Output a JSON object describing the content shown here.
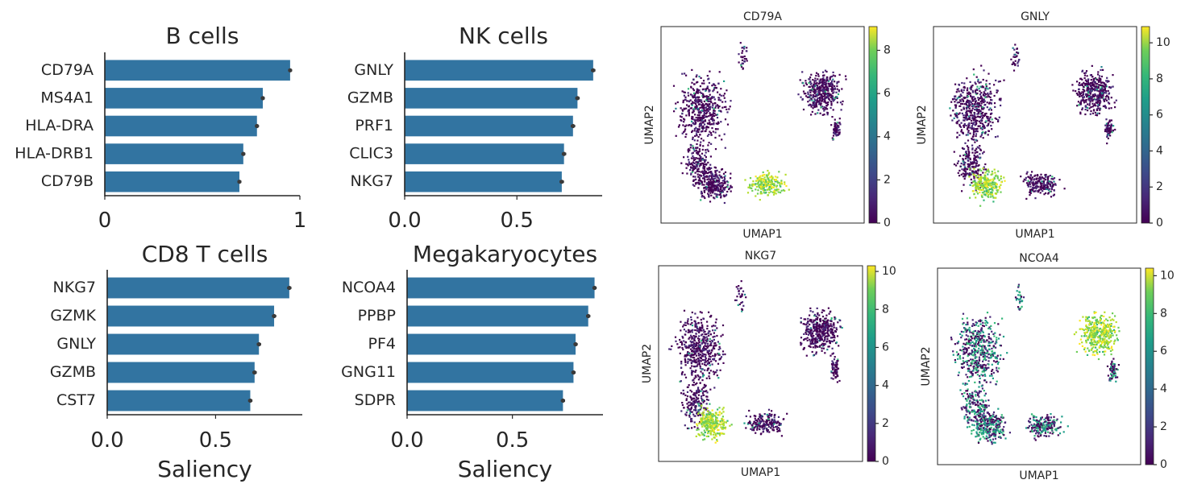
{
  "chart_data": [
    {
      "type": "bar",
      "orientation": "horizontal",
      "title": "B cells",
      "categories": [
        "CD79A",
        "MS4A1",
        "HLA-DRA",
        "HLA-DRB1",
        "CD79B"
      ],
      "values": [
        0.95,
        0.81,
        0.78,
        0.71,
        0.69
      ],
      "errors": [
        0.01,
        0.01,
        0.01,
        0.01,
        0.01
      ],
      "xlim": [
        0,
        1.0
      ],
      "xticks": [
        0,
        1
      ],
      "xtick_labels": [
        "0",
        "1"
      ],
      "xlabel": ""
    },
    {
      "type": "bar",
      "orientation": "horizontal",
      "title": "NK cells",
      "categories": [
        "GNLY",
        "GZMB",
        "PRF1",
        "CLIC3",
        "NKG7"
      ],
      "values": [
        0.84,
        0.77,
        0.75,
        0.71,
        0.7
      ],
      "errors": [
        0.01,
        0.01,
        0.01,
        0.01,
        0.01
      ],
      "xlim": [
        0,
        0.88
      ],
      "xticks": [
        0,
        0.5
      ],
      "xtick_labels": [
        "0.0",
        "0.5"
      ],
      "xlabel": ""
    },
    {
      "type": "bar",
      "orientation": "horizontal",
      "title": "CD8 T cells",
      "categories": [
        "NKG7",
        "GZMK",
        "GNLY",
        "GZMB",
        "CST7"
      ],
      "values": [
        0.84,
        0.77,
        0.7,
        0.68,
        0.66
      ],
      "errors": [
        0.01,
        0.01,
        0.01,
        0.01,
        0.01
      ],
      "xlim": [
        0,
        0.9
      ],
      "xticks": [
        0,
        0.5
      ],
      "xtick_labels": [
        "0.0",
        "0.5"
      ],
      "xlabel": "Saliency"
    },
    {
      "type": "bar",
      "orientation": "horizontal",
      "title": "Megakaryocytes",
      "categories": [
        "NCOA4",
        "PPBP",
        "PF4",
        "GNG11",
        "SDPR"
      ],
      "values": [
        0.89,
        0.86,
        0.8,
        0.79,
        0.74
      ],
      "errors": [
        0.01,
        0.01,
        0.01,
        0.01,
        0.01
      ],
      "xlim": [
        0,
        0.93
      ],
      "xticks": [
        0,
        0.5
      ],
      "xtick_labels": [
        "0.0",
        "0.5"
      ],
      "xlabel": "Saliency"
    },
    {
      "type": "scatter",
      "title": "CD79A",
      "xlabel": "UMAP1",
      "ylabel": "UMAP2",
      "colormap": "viridis",
      "colorbar_range": [
        0,
        9.1
      ],
      "colorbar_ticks": [
        "0",
        "2",
        "4",
        "6",
        "8"
      ],
      "high_expression_clusters": [
        "lower-middle"
      ]
    },
    {
      "type": "scatter",
      "title": "GNLY",
      "xlabel": "UMAP1",
      "ylabel": "UMAP2",
      "colormap": "viridis",
      "colorbar_range": [
        0,
        10.9
      ],
      "colorbar_ticks": [
        "0",
        "2",
        "4",
        "6",
        "8",
        "10"
      ],
      "high_expression_clusters": [
        "lower-left"
      ]
    },
    {
      "type": "scatter",
      "title": "NKG7",
      "xlabel": "UMAP1",
      "ylabel": "UMAP2",
      "colormap": "viridis",
      "colorbar_range": [
        0,
        10.3
      ],
      "colorbar_ticks": [
        "0",
        "2",
        "4",
        "6",
        "8",
        "10"
      ],
      "high_expression_clusters": [
        "lower-left"
      ]
    },
    {
      "type": "scatter",
      "title": "NCOA4",
      "xlabel": "UMAP1",
      "ylabel": "UMAP2",
      "colormap": "viridis",
      "colorbar_range": [
        0,
        10.4
      ],
      "colorbar_ticks": [
        "0",
        "2",
        "4",
        "6",
        "8",
        "10"
      ],
      "high_expression_clusters": [
        "upper-right"
      ]
    }
  ],
  "colors": {
    "bar": "#3274a1",
    "errorbar": "#3a3a3a"
  }
}
